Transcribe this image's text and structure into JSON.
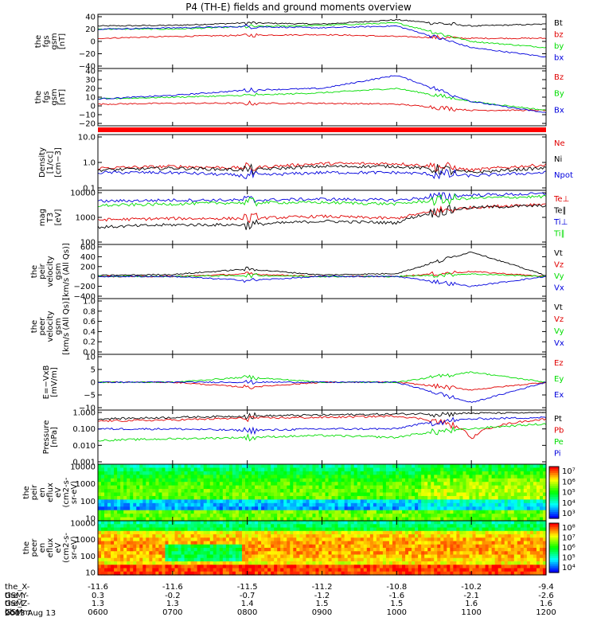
{
  "title": "P4 (TH-E) fields and ground moments overview",
  "colors": {
    "black": "#000000",
    "red": "#e00000",
    "green": "#00dd00",
    "blue": "#0000dd"
  },
  "x_ticks": [
    "0600",
    "0700",
    "0800",
    "0900",
    "1000",
    "1100",
    "1200"
  ],
  "footer_rows": [
    {
      "label": "the_X-GSM",
      "values": [
        "-11.6",
        "-11.6",
        "-11.5",
        "-11.2",
        "-10.8",
        "-10.2",
        "-9.4"
      ]
    },
    {
      "label": "the_Y-GSM",
      "values": [
        "0.3",
        "-0.2",
        "-0.7",
        "-1.2",
        "-1.6",
        "-2.1",
        "-2.6"
      ]
    },
    {
      "label": "the_Z-GSM",
      "values": [
        "1.3",
        "1.3",
        "1.4",
        "1.5",
        "1.5",
        "1.6",
        "1.6"
      ]
    },
    {
      "label": "hhmm",
      "values": [
        "0600",
        "0700",
        "0800",
        "0900",
        "1000",
        "1100",
        "1200"
      ]
    }
  ],
  "date": "2013 Aug 13",
  "chart_data": [
    {
      "type": "line",
      "ylabel": [
        "the",
        "fgs",
        "gsm",
        "[nT]"
      ],
      "yticks": [
        "40",
        "20",
        "0",
        "−20",
        "−40"
      ],
      "ylim": [
        -40,
        40
      ],
      "series": [
        {
          "name": "Bt",
          "color": "#000000",
          "approx_trend": [
            25,
            26,
            30,
            28,
            35,
            25,
            28
          ]
        },
        {
          "name": "bz",
          "color": "#e00000",
          "approx_trend": [
            5,
            8,
            10,
            11,
            8,
            5,
            5
          ]
        },
        {
          "name": "by",
          "color": "#00dd00",
          "approx_trend": [
            20,
            20,
            24,
            26,
            30,
            0,
            -10
          ]
        },
        {
          "name": "bx",
          "color": "#0000dd",
          "approx_trend": [
            20,
            22,
            24,
            22,
            25,
            -10,
            -25
          ]
        }
      ]
    },
    {
      "type": "line",
      "ylabel": [
        "the",
        "fgs",
        "gsm",
        "[nT]"
      ],
      "yticks": [
        "40",
        "30",
        "20",
        "10",
        "0",
        "−10",
        "−20"
      ],
      "ylim": [
        -20,
        40
      ],
      "series": [
        {
          "name": "Bz",
          "color": "#e00000",
          "approx_trend": [
            2,
            3,
            3,
            3,
            2,
            -5,
            -5
          ]
        },
        {
          "name": "By",
          "color": "#00dd00",
          "approx_trend": [
            8,
            10,
            12,
            15,
            20,
            5,
            -5
          ]
        },
        {
          "name": "Bx",
          "color": "#0000dd",
          "approx_trend": [
            8,
            12,
            18,
            20,
            35,
            5,
            -8
          ]
        }
      ]
    },
    {
      "type": "line",
      "ylabel": [
        "Density",
        "[1/cc]",
        "[cm−3]"
      ],
      "yticks": [
        "10.0",
        "1.0",
        "0.1"
      ],
      "ylim": [
        0.1,
        10
      ],
      "log": true,
      "series": [
        {
          "name": "Ne",
          "color": "#e00000",
          "approx_trend": [
            0.6,
            0.7,
            0.6,
            0.9,
            0.9,
            0.5,
            0.8
          ]
        },
        {
          "name": "Ni",
          "color": "#000000",
          "approx_trend": [
            0.5,
            0.6,
            0.5,
            0.7,
            0.7,
            0.4,
            0.6
          ]
        },
        {
          "name": "Npot",
          "color": "#0000dd",
          "approx_trend": [
            0.4,
            0.4,
            0.3,
            0.4,
            0.4,
            0.3,
            0.4
          ]
        }
      ]
    },
    {
      "type": "line",
      "ylabel": [
        "mag",
        "T3",
        "[eV]"
      ],
      "yticks": [
        "10000",
        "1000",
        "100"
      ],
      "ylim": [
        100,
        10000
      ],
      "log": true,
      "series": [
        {
          "name": "Te⊥",
          "color": "#e00000",
          "approx_trend": [
            800,
            900,
            900,
            1100,
            900,
            2500,
            3500
          ]
        },
        {
          "name": "Te∥",
          "color": "#000000",
          "approx_trend": [
            400,
            500,
            500,
            700,
            600,
            2500,
            3000
          ]
        },
        {
          "name": "Ti⊥",
          "color": "#0000dd",
          "approx_trend": [
            4500,
            5000,
            5000,
            5500,
            5000,
            8000,
            9000
          ]
        },
        {
          "name": "Ti∥",
          "color": "#00dd00",
          "approx_trend": [
            3000,
            3500,
            4000,
            4000,
            3500,
            6000,
            7000
          ]
        }
      ]
    },
    {
      "type": "line",
      "ylabel": [
        "the",
        "peir",
        "velocity",
        "gsm",
        "[km/s (All Qs)]"
      ],
      "yticks": [
        "600",
        "400",
        "200",
        "0",
        "−200",
        "−400"
      ],
      "ylim": [
        -400,
        600
      ],
      "series": [
        {
          "name": "Vt",
          "color": "#000000",
          "approx_trend": [
            20,
            40,
            150,
            30,
            60,
            500,
            20
          ]
        },
        {
          "name": "Vz",
          "color": "#e00000",
          "approx_trend": [
            0,
            0,
            50,
            0,
            0,
            100,
            0
          ]
        },
        {
          "name": "Vy",
          "color": "#00dd00",
          "approx_trend": [
            0,
            0,
            20,
            0,
            0,
            50,
            0
          ]
        },
        {
          "name": "Vx",
          "color": "#0000dd",
          "approx_trend": [
            0,
            0,
            -80,
            0,
            0,
            -200,
            0
          ]
        }
      ]
    },
    {
      "type": "line",
      "ylabel": [
        "the",
        "peer",
        "velocity",
        "gsm",
        "[km/s (All Qs)]"
      ],
      "yticks": [
        "1.0",
        "0.8",
        "0.6",
        "0.4",
        "0.2",
        "0.0"
      ],
      "ylim": [
        0,
        1
      ],
      "series": [
        {
          "name": "Vt",
          "color": "#000000"
        },
        {
          "name": "Vz",
          "color": "#e00000"
        },
        {
          "name": "Vy",
          "color": "#00dd00"
        },
        {
          "name": "Vx",
          "color": "#0000dd"
        }
      ]
    },
    {
      "type": "line",
      "ylabel": [
        "E=−VxB",
        "[mV/m]"
      ],
      "yticks": [
        "10",
        "5",
        "0",
        "−5",
        "−10"
      ],
      "ylim": [
        -10,
        10
      ],
      "series": [
        {
          "name": "Ez",
          "color": "#e00000",
          "approx_trend": [
            0,
            0,
            -2,
            0,
            0,
            -3,
            0
          ]
        },
        {
          "name": "Ey",
          "color": "#00dd00",
          "approx_trend": [
            0,
            0,
            2,
            0,
            0,
            4,
            0
          ]
        },
        {
          "name": "Ex",
          "color": "#0000dd",
          "approx_trend": [
            0,
            0,
            0,
            0,
            0,
            -8,
            0
          ]
        }
      ]
    },
    {
      "type": "line",
      "ylabel": [
        "Pressure",
        "[nPa]"
      ],
      "yticks": [
        "1.000",
        "0.100",
        "0.010",
        "0.001"
      ],
      "ylim": [
        0.001,
        1
      ],
      "log": true,
      "series": [
        {
          "name": "Pt",
          "color": "#000000",
          "approx_trend": [
            0.4,
            0.5,
            0.6,
            0.7,
            0.8,
            0.9,
            1.0
          ]
        },
        {
          "name": "Pb",
          "color": "#e00000",
          "approx_trend": [
            0.3,
            0.35,
            0.45,
            0.5,
            0.6,
            0.02,
            0.4
          ]
        },
        {
          "name": "Pe",
          "color": "#00dd00",
          "approx_trend": [
            0.02,
            0.025,
            0.03,
            0.04,
            0.03,
            0.1,
            0.2
          ]
        },
        {
          "name": "Pi",
          "color": "#0000dd",
          "approx_trend": [
            0.1,
            0.1,
            0.08,
            0.1,
            0.1,
            0.4,
            0.5
          ]
        }
      ]
    },
    {
      "type": "heatmap",
      "ylabel": [
        "the",
        "peir",
        "en",
        "eflux",
        "eV",
        "(cm2-s-",
        "sr-eV)"
      ],
      "yticks": [
        "10000",
        "1000",
        "100",
        "10"
      ],
      "ylim": [
        10,
        10000
      ],
      "colorbar_ticks": [
        "10⁷",
        "10⁶",
        "10⁵",
        "10⁴",
        "10³"
      ]
    },
    {
      "type": "heatmap",
      "ylabel": [
        "the",
        "peer",
        "en",
        "eflux",
        "eV",
        "(cm2-s-",
        "sr-eV)"
      ],
      "yticks": [
        "10000",
        "1000",
        "100",
        "10"
      ],
      "ylim": [
        10,
        10000
      ],
      "colorbar_ticks": [
        "10⁸",
        "10⁷",
        "10⁶",
        "10⁵",
        "10⁴"
      ]
    }
  ]
}
